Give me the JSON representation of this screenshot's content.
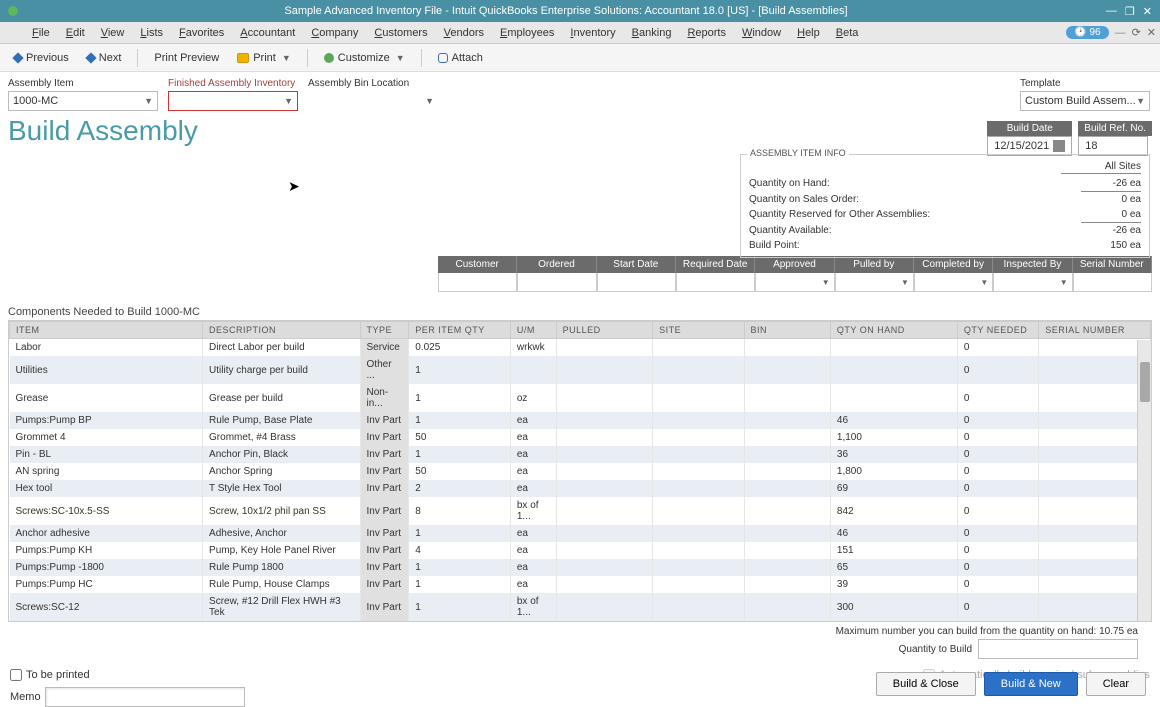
{
  "titlebar": {
    "text": "Sample Advanced Inventory File  - Intuit QuickBooks Enterprise Solutions: Accountant 18.0 [US] - [Build Assemblies]"
  },
  "menu": {
    "items": [
      "File",
      "Edit",
      "View",
      "Lists",
      "Favorites",
      "Accountant",
      "Company",
      "Customers",
      "Vendors",
      "Employees",
      "Inventory",
      "Banking",
      "Reports",
      "Window",
      "Help",
      "Beta"
    ],
    "badge_count": "96"
  },
  "toolbar": {
    "previous": "Previous",
    "next": "Next",
    "print_preview": "Print Preview",
    "print": "Print",
    "customize": "Customize",
    "attach": "Attach"
  },
  "fields": {
    "assembly_item_label": "Assembly Item",
    "assembly_item_value": "1000-MC",
    "finished_inventory_label": "Finished Assembly Inventory",
    "finished_inventory_value": "",
    "bin_location_label": "Assembly Bin Location",
    "bin_location_value": ""
  },
  "template": {
    "label": "Template",
    "value": "Custom Build Assem..."
  },
  "page_title": "Build Assembly",
  "header_boxes": {
    "build_date_label": "Build Date",
    "build_date_value": "12/15/2021",
    "build_ref_label": "Build Ref. No.",
    "build_ref_value": "18"
  },
  "info_panel": {
    "legend": "ASSEMBLY ITEM INFO",
    "all_sites": "All Sites",
    "rows": [
      {
        "label": "Quantity on Hand:",
        "value": "-26 ea",
        "u": true
      },
      {
        "label": "Quantity on Sales Order:",
        "value": "0 ea"
      },
      {
        "label": "Quantity Reserved for Other Assemblies:",
        "value": "0 ea",
        "u": true
      },
      {
        "label": "Quantity Available:",
        "value": "-26 ea"
      },
      {
        "label": "Build Point:",
        "value": "150 ea"
      }
    ]
  },
  "order_grid": {
    "columns": [
      "Customer",
      "Ordered",
      "Start Date",
      "Required Date",
      "Approved",
      "Pulled by",
      "Completed by",
      "Inspected By",
      "Serial Number"
    ]
  },
  "components_label": "Components Needed to Build  1000-MC",
  "components_columns": [
    "ITEM",
    "DESCRIPTION",
    "TYPE",
    "PER ITEM QTY",
    "U/M",
    "PULLED",
    "SITE",
    "BIN",
    "QTY ON HAND",
    "QTY NEEDED",
    "SERIAL NUMBER"
  ],
  "components_rows": [
    {
      "item": "Labor",
      "desc": "Direct Labor per build",
      "type": "Service",
      "per": "0.025",
      "um": "wrkwk",
      "pulled": "",
      "site": "",
      "bin": "",
      "onhand": "",
      "needed": "0",
      "sn": ""
    },
    {
      "item": "Utilities",
      "desc": "Utility charge per build",
      "type": "Other ...",
      "per": "1",
      "um": "",
      "pulled": "",
      "site": "",
      "bin": "",
      "onhand": "",
      "needed": "0",
      "sn": ""
    },
    {
      "item": "Grease",
      "desc": "Grease per build",
      "type": "Non-in...",
      "per": "1",
      "um": "oz",
      "pulled": "",
      "site": "",
      "bin": "",
      "onhand": "",
      "needed": "0",
      "sn": ""
    },
    {
      "item": "Pumps:Pump BP",
      "desc": "Rule Pump, Base Plate",
      "type": "Inv Part",
      "per": "1",
      "um": "ea",
      "pulled": "",
      "site": "",
      "bin": "",
      "onhand": "46",
      "needed": "0",
      "sn": ""
    },
    {
      "item": "Grommet 4",
      "desc": "Grommet, #4 Brass",
      "type": "Inv Part",
      "per": "50",
      "um": "ea",
      "pulled": "",
      "site": "",
      "bin": "",
      "onhand": "1,100",
      "needed": "0",
      "sn": ""
    },
    {
      "item": "Pin - BL",
      "desc": "Anchor Pin, Black",
      "type": "Inv Part",
      "per": "1",
      "um": "ea",
      "pulled": "",
      "site": "",
      "bin": "",
      "onhand": "36",
      "needed": "0",
      "sn": ""
    },
    {
      "item": "AN spring",
      "desc": "Anchor Spring",
      "type": "Inv Part",
      "per": "50",
      "um": "ea",
      "pulled": "",
      "site": "",
      "bin": "",
      "onhand": "1,800",
      "needed": "0",
      "sn": ""
    },
    {
      "item": "Hex tool",
      "desc": "T Style Hex Tool",
      "type": "Inv Part",
      "per": "2",
      "um": "ea",
      "pulled": "",
      "site": "",
      "bin": "",
      "onhand": "69",
      "needed": "0",
      "sn": ""
    },
    {
      "item": "Screws:SC-10x.5-SS",
      "desc": "Screw, 10x1/2 phil pan SS",
      "type": "Inv Part",
      "per": "8",
      "um": "bx of 1...",
      "pulled": "",
      "site": "",
      "bin": "",
      "onhand": "842",
      "needed": "0",
      "sn": ""
    },
    {
      "item": "Anchor adhesive",
      "desc": "Adhesive, Anchor",
      "type": "Inv Part",
      "per": "1",
      "um": "ea",
      "pulled": "",
      "site": "",
      "bin": "",
      "onhand": "46",
      "needed": "0",
      "sn": ""
    },
    {
      "item": "Pumps:Pump KH",
      "desc": "Pump, Key Hole Panel River",
      "type": "Inv Part",
      "per": "4",
      "um": "ea",
      "pulled": "",
      "site": "",
      "bin": "",
      "onhand": "151",
      "needed": "0",
      "sn": ""
    },
    {
      "item": "Pumps:Pump -1800",
      "desc": "Rule Pump 1800",
      "type": "Inv Part",
      "per": "1",
      "um": "ea",
      "pulled": "",
      "site": "",
      "bin": "",
      "onhand": "65",
      "needed": "0",
      "sn": ""
    },
    {
      "item": "Pumps:Pump HC",
      "desc": "Rule Pump, House Clamps",
      "type": "Inv Part",
      "per": "1",
      "um": "ea",
      "pulled": "",
      "site": "",
      "bin": "",
      "onhand": "39",
      "needed": "0",
      "sn": ""
    },
    {
      "item": "Screws:SC-12",
      "desc": "Screw, #12 Drill Flex HWH #3 Tek",
      "type": "Inv Part",
      "per": "1",
      "um": "bx of 1...",
      "pulled": "",
      "site": "",
      "bin": "",
      "onhand": "300",
      "needed": "0",
      "sn": ""
    }
  ],
  "build_info": {
    "max_label": "Maximum number you can build from the quantity on hand: 10.75 ea",
    "qty_label": "Quantity to Build"
  },
  "footer": {
    "to_be_printed": "To be printed",
    "auto_build": "Automatically build required subassemblies",
    "memo_label": "Memo"
  },
  "buttons": {
    "build_close": "Build & Close",
    "build_new": "Build & New",
    "clear": "Clear"
  },
  "col_widths": {
    "item": "190px",
    "desc": "155px",
    "type": "48px",
    "per": "100px",
    "um": "45px",
    "pulled": "95px",
    "site": "90px",
    "bin": "85px",
    "onhand": "125px",
    "needed": "80px",
    "sn": "110px"
  }
}
